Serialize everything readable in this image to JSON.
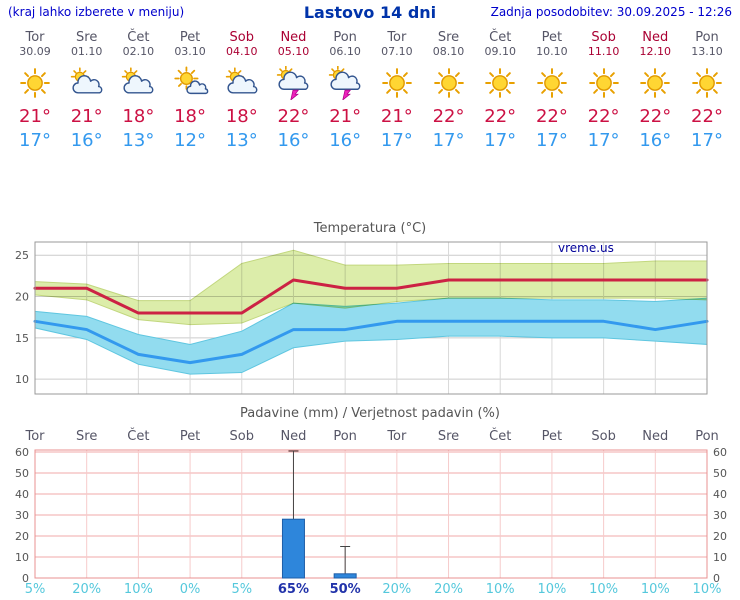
{
  "header": {
    "left_note": "(kraj lahko izberete v meniju)",
    "title": "Lastovo 14 dni",
    "updated": "Zadnja posodobitev: 30.09.2025 - 12:26"
  },
  "forecast": {
    "days": [
      {
        "name": "Tor",
        "date": "30.09",
        "weekend": false,
        "icon": "sunny",
        "high": 21,
        "low": 17
      },
      {
        "name": "Sre",
        "date": "01.10",
        "weekend": false,
        "icon": "mostly-cloudy",
        "high": 21,
        "low": 16
      },
      {
        "name": "Čet",
        "date": "02.10",
        "weekend": false,
        "icon": "mostly-cloudy",
        "high": 18,
        "low": 13
      },
      {
        "name": "Pet",
        "date": "03.10",
        "weekend": false,
        "icon": "partly-cloudy",
        "high": 18,
        "low": 12
      },
      {
        "name": "Sob",
        "date": "04.10",
        "weekend": true,
        "icon": "mostly-cloudy",
        "high": 18,
        "low": 13
      },
      {
        "name": "Ned",
        "date": "05.10",
        "weekend": true,
        "icon": "thunderstorm",
        "high": 22,
        "low": 16
      },
      {
        "name": "Pon",
        "date": "06.10",
        "weekend": false,
        "icon": "thunderstorm",
        "high": 21,
        "low": 16
      },
      {
        "name": "Tor",
        "date": "07.10",
        "weekend": false,
        "icon": "sunny",
        "high": 21,
        "low": 17
      },
      {
        "name": "Sre",
        "date": "08.10",
        "weekend": false,
        "icon": "sunny",
        "high": 22,
        "low": 17
      },
      {
        "name": "Čet",
        "date": "09.10",
        "weekend": false,
        "icon": "sunny",
        "high": 22,
        "low": 17
      },
      {
        "name": "Pet",
        "date": "10.10",
        "weekend": false,
        "icon": "sunny",
        "high": 22,
        "low": 17
      },
      {
        "name": "Sob",
        "date": "11.10",
        "weekend": true,
        "icon": "sunny",
        "high": 22,
        "low": 17
      },
      {
        "name": "Ned",
        "date": "12.10",
        "weekend": true,
        "icon": "sunny",
        "high": 22,
        "low": 16
      },
      {
        "name": "Pon",
        "date": "13.10",
        "weekend": false,
        "icon": "sunny",
        "high": 22,
        "low": 17
      }
    ]
  },
  "chart_data": [
    {
      "type": "line",
      "title": "Temperatura (°C)",
      "watermark": "vreme.us",
      "x": [
        "Tor",
        "Sre",
        "Čet",
        "Pet",
        "Sob",
        "Ned",
        "Pon",
        "Tor",
        "Sre",
        "Čet",
        "Pet",
        "Sob",
        "Ned",
        "Pon"
      ],
      "ylim": [
        8.2,
        26.6
      ],
      "yticks": [
        10,
        15,
        20,
        25
      ],
      "grid": true,
      "series": [
        {
          "name": "max-temperature",
          "color": "#cc2244",
          "values": [
            21,
            21,
            18,
            18,
            18,
            22,
            21,
            21,
            22,
            22,
            22,
            22,
            22,
            22
          ]
        },
        {
          "name": "min-temperature",
          "color": "#3399ee",
          "values": [
            17,
            16,
            13,
            12,
            13,
            16,
            16,
            17,
            17,
            17,
            17,
            17,
            16,
            17
          ]
        }
      ],
      "bands": [
        {
          "name": "max-range",
          "color": "#dcedaa",
          "edge": "#c2d77e",
          "upper": [
            21.8,
            21.5,
            19.5,
            19.5,
            24.0,
            25.6,
            23.8,
            23.8,
            24.0,
            24.0,
            24.0,
            24.0,
            24.3,
            24.3
          ],
          "lower": [
            20.2,
            19.6,
            17.2,
            16.6,
            16.8,
            19.2,
            18.6,
            19.4,
            19.8,
            19.8,
            19.8,
            19.8,
            19.8,
            19.6
          ]
        },
        {
          "name": "min-range",
          "color": "#92dcef",
          "edge": "#5fc6e0",
          "upper": [
            18.2,
            17.6,
            15.4,
            14.2,
            15.8,
            19.2,
            18.8,
            19.2,
            19.8,
            19.8,
            19.6,
            19.6,
            19.4,
            19.8
          ],
          "lower": [
            16.2,
            14.8,
            11.8,
            10.6,
            10.8,
            13.8,
            14.6,
            14.8,
            15.2,
            15.2,
            15.0,
            15.0,
            14.6,
            14.2
          ]
        }
      ]
    },
    {
      "type": "bar",
      "title": "Padavine (mm) / Verjetnost padavin (%)",
      "categories": [
        "Tor",
        "Sre",
        "Čet",
        "Pet",
        "Sob",
        "Ned",
        "Pon",
        "Tor",
        "Sre",
        "Čet",
        "Pet",
        "Sob",
        "Ned",
        "Pon"
      ],
      "weekend_indices": [
        4,
        5,
        11,
        12
      ],
      "values": [
        0,
        0,
        0,
        0,
        0,
        28,
        2,
        0,
        0,
        0,
        0,
        0,
        0,
        0
      ],
      "whisker_high": [
        0,
        0,
        0,
        0,
        0,
        62,
        15,
        0,
        0,
        0,
        0,
        0,
        0,
        0
      ],
      "probabilities": [
        "5%",
        "20%",
        "10%",
        "0%",
        "5%",
        "65%",
        "50%",
        "20%",
        "20%",
        "10%",
        "10%",
        "10%",
        "10%",
        "10%"
      ],
      "ylim": [
        0,
        62
      ],
      "yticks": [
        0,
        10,
        20,
        30,
        40,
        50,
        60
      ],
      "bar_color": "#2e86db",
      "grid": true
    }
  ]
}
